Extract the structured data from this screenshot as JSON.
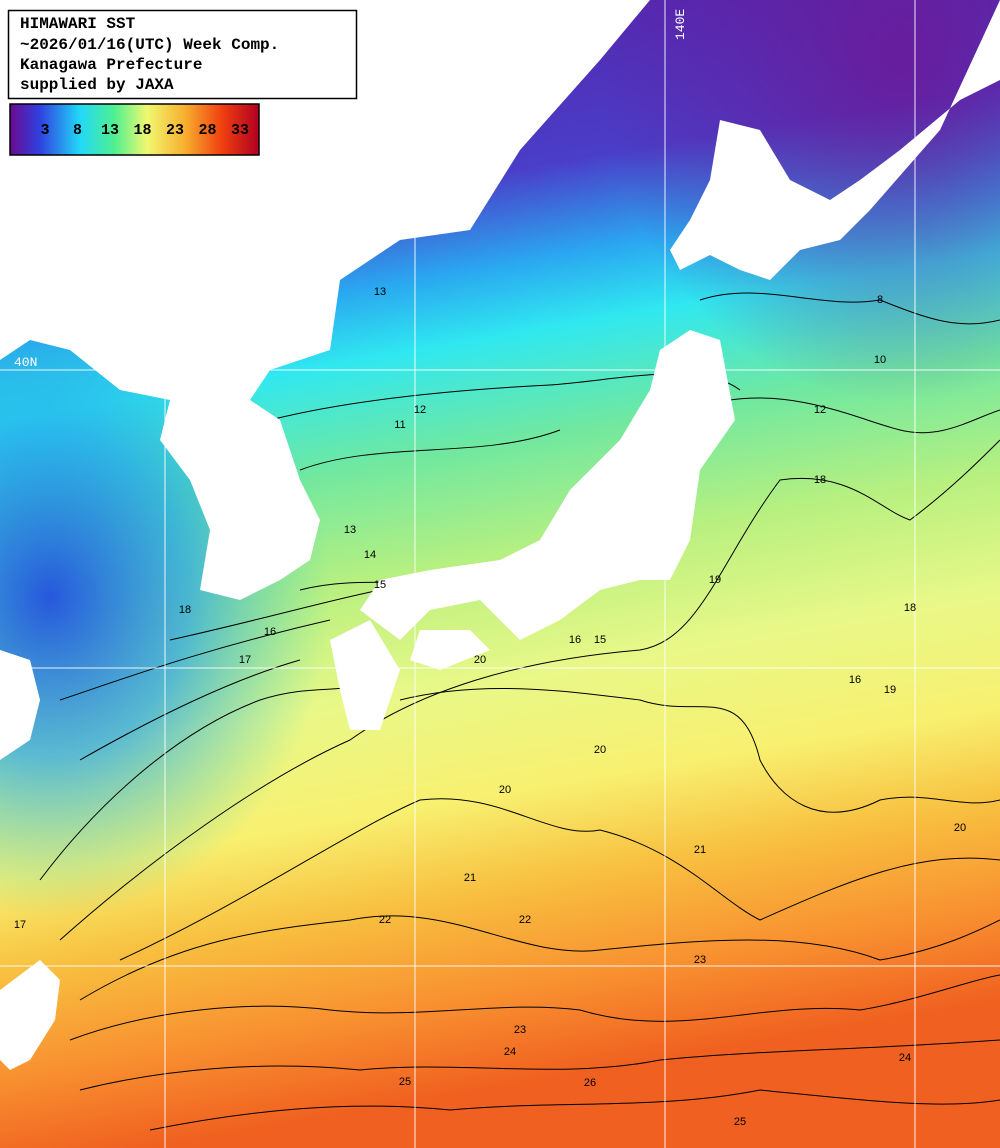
{
  "header": {
    "lines": [
      "HIMAWARI SST",
      "~2026/01/16(UTC) Week Comp.",
      "Kanagawa Prefecture",
      "supplied by JAXA"
    ]
  },
  "colorbar": {
    "ticks": [
      3,
      8,
      13,
      18,
      23,
      28,
      33
    ]
  },
  "grid_labels": {
    "longitude": "140E",
    "latitude": "40N"
  },
  "contour_labels": [
    13,
    11,
    12,
    13,
    14,
    15,
    16,
    17,
    18,
    16,
    15,
    20,
    19,
    18,
    16,
    20,
    20,
    21,
    19,
    20,
    21,
    22,
    22,
    23,
    23,
    24,
    25,
    26,
    25,
    24,
    17,
    18,
    10,
    12,
    8
  ]
}
